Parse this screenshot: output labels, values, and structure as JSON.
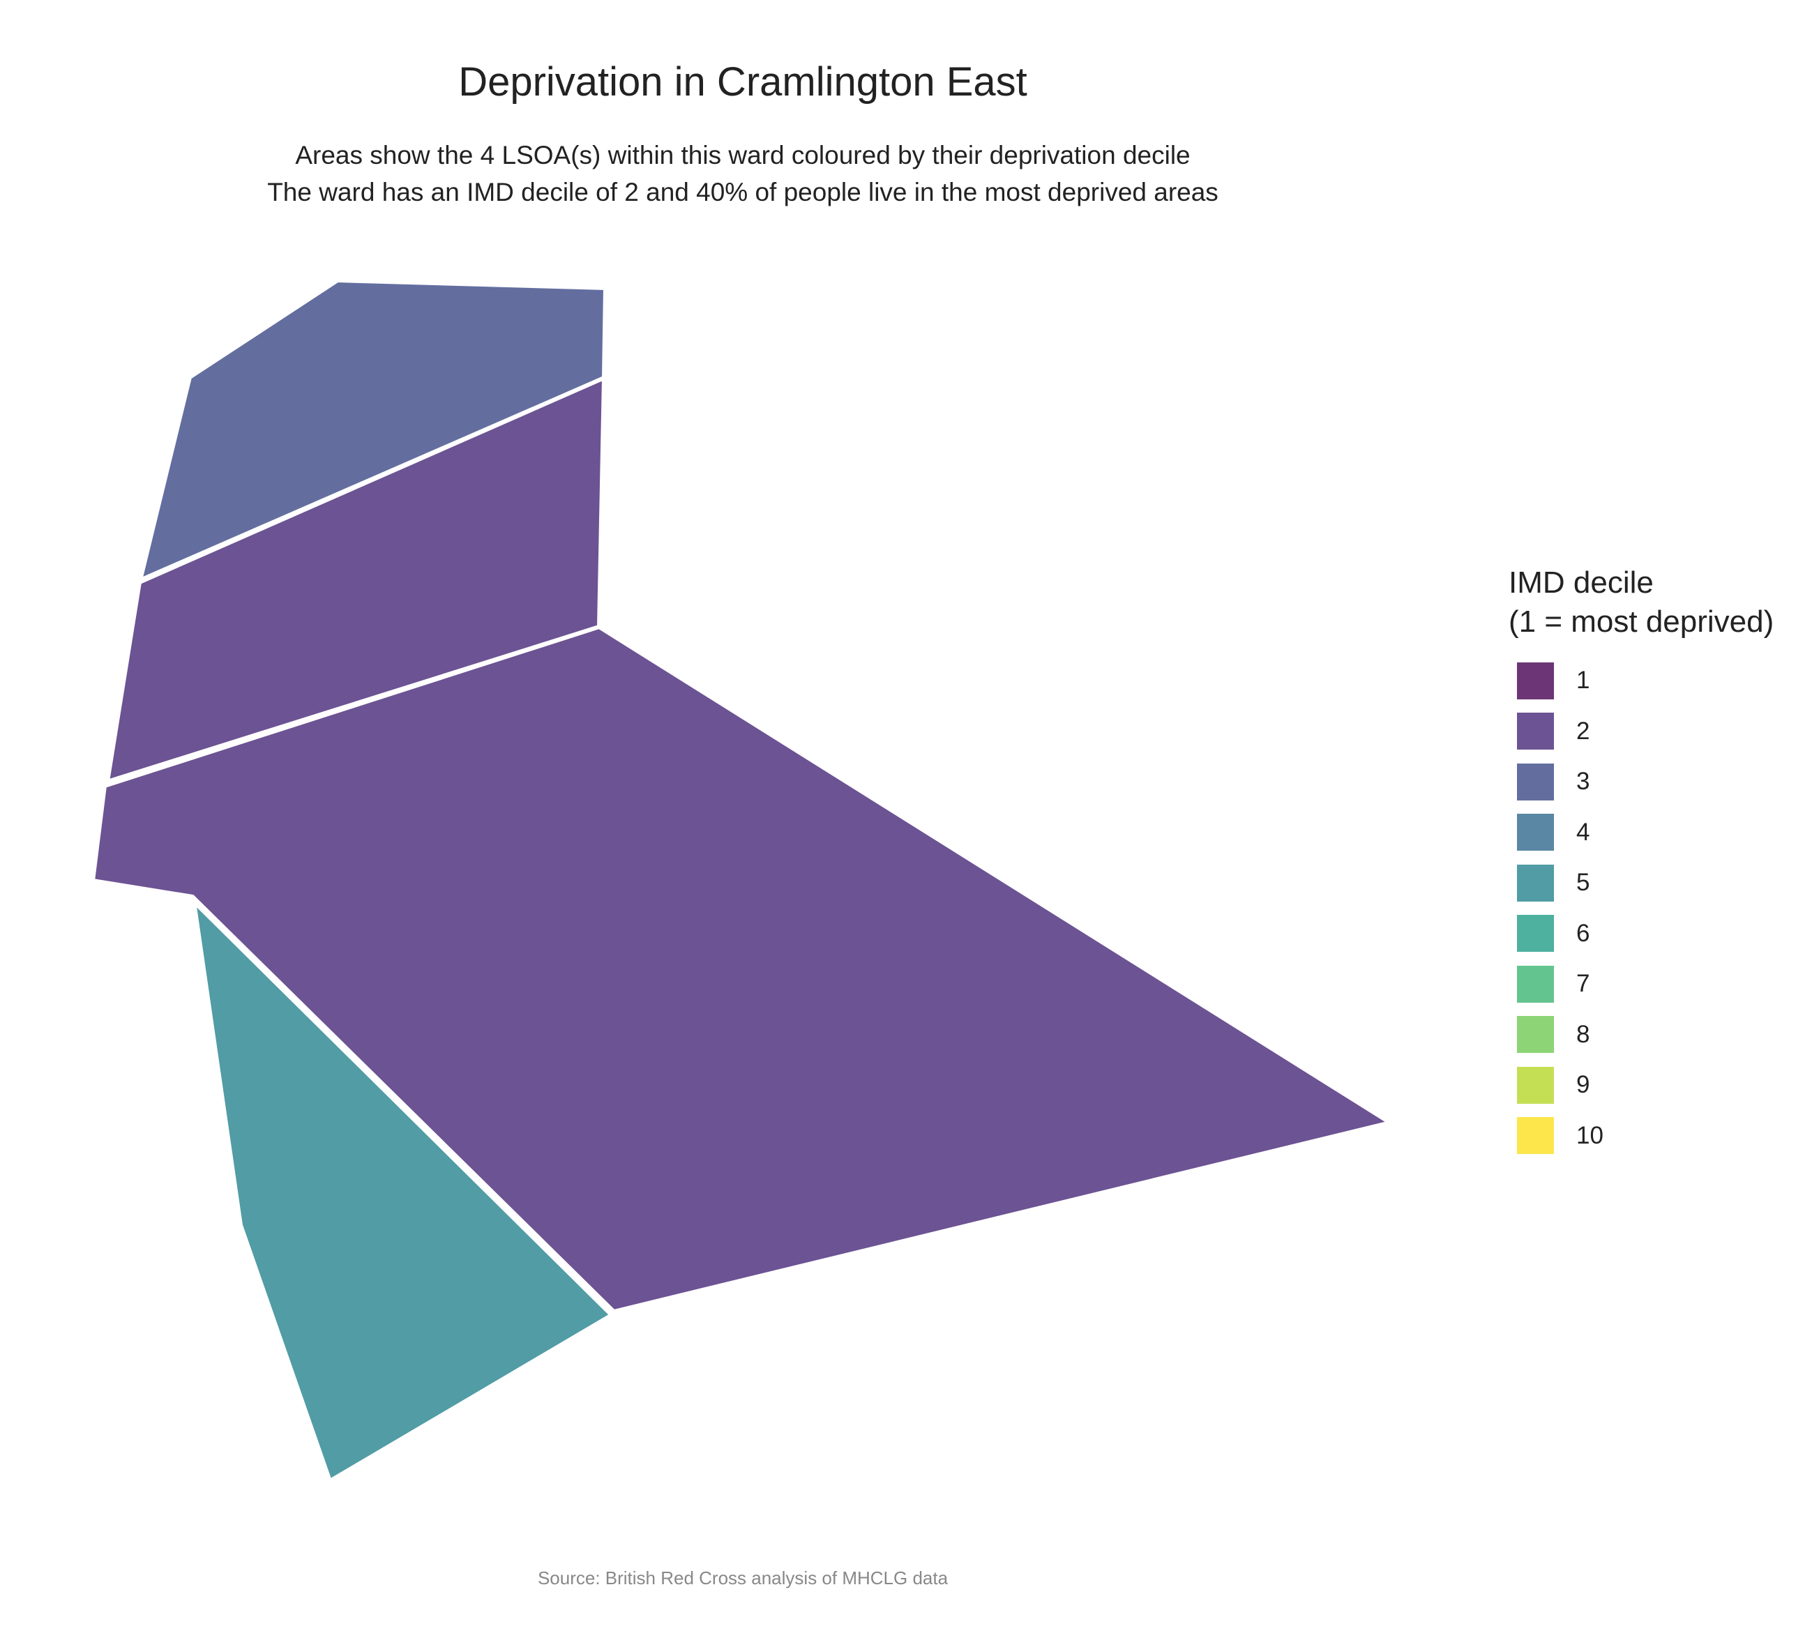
{
  "title": "Deprivation in Cramlington East",
  "subtitle": {
    "line1": "Areas show the 4 LSOA(s) within this ward coloured by their deprivation decile",
    "line2": "The ward has an IMD decile of 2 and 40% of people live in the most deprived areas"
  },
  "legend": {
    "title_line1": "IMD decile",
    "title_line2": "(1 = most deprived)",
    "items": [
      {
        "label": "1",
        "color": "#6b3576"
      },
      {
        "label": "2",
        "color": "#6c5393"
      },
      {
        "label": "3",
        "color": "#636e9f"
      },
      {
        "label": "4",
        "color": "#5a87a4"
      },
      {
        "label": "5",
        "color": "#519ca5"
      },
      {
        "label": "6",
        "color": "#4eb09f"
      },
      {
        "label": "7",
        "color": "#63c490"
      },
      {
        "label": "8",
        "color": "#8dd477"
      },
      {
        "label": "9",
        "color": "#c5df55"
      },
      {
        "label": "10",
        "color": "#fce64c"
      }
    ]
  },
  "areas": [
    {
      "id": "lsoa-north",
      "decile": 3
    },
    {
      "id": "lsoa-middle",
      "decile": 2
    },
    {
      "id": "lsoa-large",
      "decile": 2
    },
    {
      "id": "lsoa-south",
      "decile": 5
    }
  ],
  "caption": "Source: British Red Cross analysis of MHCLG data"
}
